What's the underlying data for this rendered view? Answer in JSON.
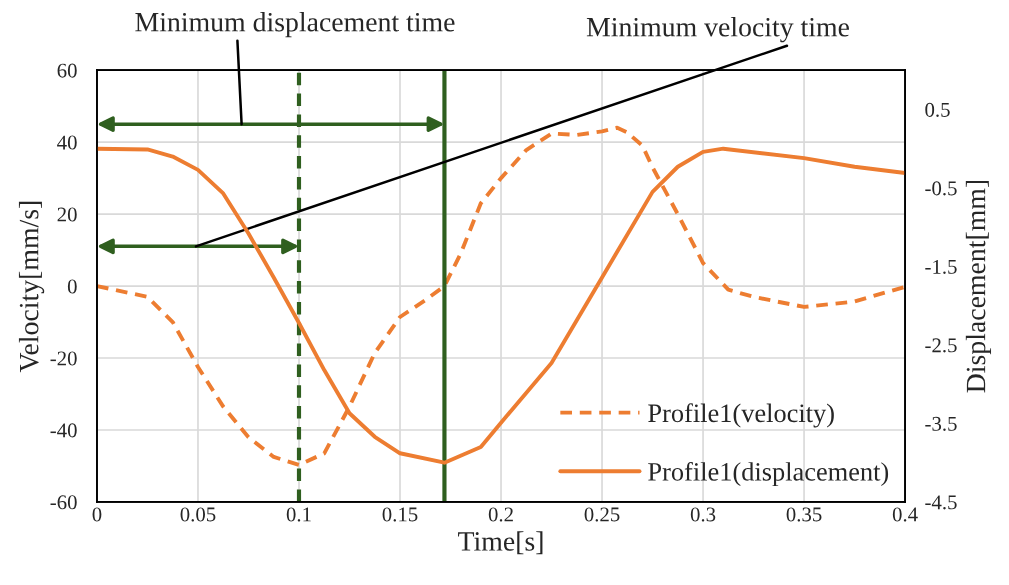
{
  "chart_data": {
    "type": "line",
    "xlabel": "Time[s]",
    "ylabel": "Velocity[mm/s]",
    "y2label": "Displacement[mm]",
    "xlim": [
      0,
      0.4
    ],
    "xticks": [
      0,
      0.05,
      0.1,
      0.15,
      0.2,
      0.25,
      0.3,
      0.35,
      0.4
    ],
    "ylim": [
      -60,
      60
    ],
    "yticks": [
      -60,
      -40,
      -20,
      0,
      20,
      40,
      60
    ],
    "y2lim": [
      -4.5,
      1.0
    ],
    "y2ticks": [
      -4.5,
      -3.5,
      -2.5,
      -1.5,
      -0.5,
      0.5
    ],
    "grid": true,
    "legend": "bottom right",
    "series": [
      {
        "name": "Profile1(velocity)",
        "color": "#ed7d31",
        "line_style": "dashed",
        "x": [
          0,
          0.025,
          0.0375,
          0.05,
          0.0625,
          0.075,
          0.0875,
          0.1,
          0.1125,
          0.125,
          0.1375,
          0.15,
          0.1625,
          0.172,
          0.18,
          0.19,
          0.2,
          0.2125,
          0.225,
          0.2375,
          0.25,
          0.2575,
          0.2625,
          0.27,
          0.275,
          0.2875,
          0.3,
          0.3125,
          0.325,
          0.35,
          0.375,
          0.4
        ],
        "values": [
          0,
          -3,
          -10,
          -22.5,
          -33.5,
          -42,
          -47.5,
          -49.7,
          -46.5,
          -33.5,
          -18.6,
          -8.6,
          -3.9,
          0,
          9,
          23,
          30,
          37.8,
          42.4,
          42,
          43,
          44,
          42.7,
          39,
          33,
          20,
          6.4,
          -1,
          -3,
          -5.8,
          -4.3,
          -0.2
        ]
      },
      {
        "name": "Profile1(displacement)",
        "color": "#ed7d31",
        "line_style": "solid",
        "axis": "y2",
        "x": [
          0,
          0.025,
          0.0375,
          0.05,
          0.0625,
          0.075,
          0.0875,
          0.1,
          0.1125,
          0.125,
          0.1375,
          0.15,
          0.172,
          0.19,
          0.2,
          0.225,
          0.25,
          0.275,
          0.2875,
          0.3,
          0.31,
          0.35,
          0.375,
          0.4
        ],
        "values": [
          0,
          -0.01,
          -0.1,
          -0.27,
          -0.57,
          -1.08,
          -1.64,
          -2.22,
          -2.82,
          -3.37,
          -3.67,
          -3.88,
          -4.0,
          -3.8,
          -3.49,
          -2.73,
          -1.64,
          -0.55,
          -0.23,
          -0.04,
          0,
          -0.12,
          -0.23,
          -0.31
        ]
      }
    ],
    "ref_lines": [
      {
        "axis": "x",
        "value": 0.172,
        "color": "#2f5f1f",
        "line_style": "solid"
      },
      {
        "axis": "x",
        "value": 0.1,
        "color": "#2f5f1f",
        "line_style": "dashed"
      }
    ],
    "annotations": [
      "Minimum displacement time",
      "Minimum velocity time"
    ]
  }
}
